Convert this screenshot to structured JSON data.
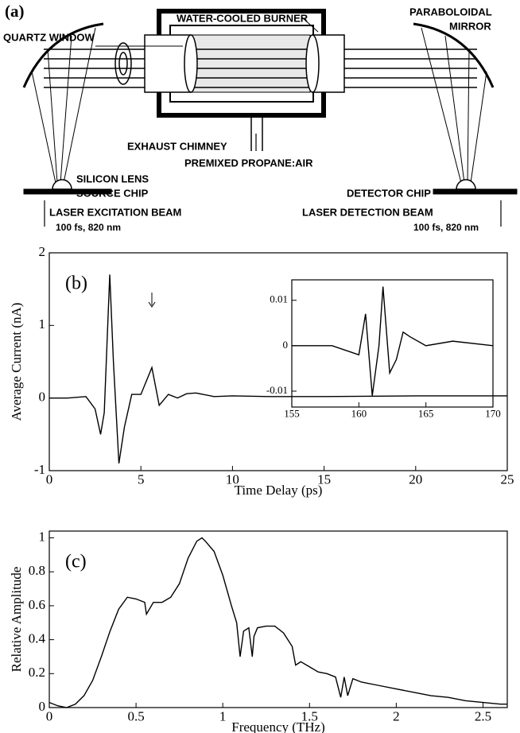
{
  "diagram": {
    "panel_label": "(a)",
    "burner": "WATER-COOLED BURNER",
    "window": "QUARTZ WINDOW",
    "mirror": [
      "PARABOLOIDAL",
      "MIRROR"
    ],
    "chimney": "EXHAUST CHIMNEY",
    "fuel": "PREMIXED PROPANE:AIR",
    "lens": "SILICON LENS",
    "source": "SOURCE CHIP",
    "detector": "DETECTOR CHIP",
    "excitation": "LASER EXCITATION BEAM",
    "excitation_spec": "100 fs, 820 nm",
    "detection": "LASER DETECTION BEAM",
    "detection_spec": "100 fs, 820 nm"
  },
  "chart_data": [
    {
      "type": "line",
      "panel_label": "(b)",
      "xlabel": "Time Delay (ps)",
      "ylabel": "Average Current (nA)",
      "color": "#000000",
      "x": [
        0,
        1,
        2,
        2.5,
        2.8,
        3.0,
        3.3,
        3.5,
        3.8,
        4.1,
        4.5,
        5.0,
        5.6,
        6.0,
        6.5,
        7.0,
        7.5,
        8,
        9,
        10,
        12,
        15,
        20,
        25
      ],
      "values": [
        0,
        0,
        0.02,
        -0.15,
        -0.5,
        -0.2,
        1.7,
        0.5,
        -0.9,
        -0.4,
        0.05,
        0.05,
        0.42,
        -0.1,
        0.05,
        0.0,
        0.06,
        0.07,
        0.02,
        0.03,
        0.02,
        0.02,
        0.03,
        0.03
      ],
      "xlim": [
        0,
        25
      ],
      "ylim": [
        -1,
        2
      ],
      "xticks": [
        0,
        5,
        10,
        15,
        20,
        25
      ],
      "yticks": [
        -1,
        0,
        1,
        2
      ]
    },
    {
      "type": "line",
      "color": "#000000",
      "x": [
        155,
        158,
        159,
        160,
        160.5,
        161,
        161.5,
        161.8,
        162.3,
        162.8,
        163.3,
        163.8,
        165,
        167,
        170
      ],
      "values": [
        0,
        0,
        -0.001,
        -0.002,
        0.007,
        -0.011,
        0,
        0.013,
        -0.006,
        -0.003,
        0.003,
        0.002,
        0,
        0.001,
        0
      ],
      "xlim": [
        155,
        170
      ],
      "ylim": [
        -0.0135,
        0.0145
      ],
      "xticks": [
        155,
        160,
        165,
        170
      ],
      "yticks": [
        -0.01,
        0,
        0.01
      ]
    },
    {
      "type": "line",
      "panel_label": "(c)",
      "xlabel": "Frequency (THz)",
      "ylabel": "Relative Amplitude",
      "color": "#000000",
      "x": [
        0,
        0.05,
        0.1,
        0.15,
        0.2,
        0.25,
        0.3,
        0.35,
        0.4,
        0.45,
        0.5,
        0.55,
        0.56,
        0.6,
        0.65,
        0.7,
        0.75,
        0.8,
        0.85,
        0.88,
        0.9,
        0.95,
        1.0,
        1.05,
        1.08,
        1.1,
        1.12,
        1.15,
        1.17,
        1.18,
        1.2,
        1.25,
        1.3,
        1.35,
        1.4,
        1.42,
        1.45,
        1.5,
        1.55,
        1.6,
        1.65,
        1.68,
        1.7,
        1.72,
        1.75,
        1.8,
        1.9,
        2.0,
        2.1,
        2.2,
        2.3,
        2.4,
        2.5,
        2.6,
        2.64
      ],
      "values": [
        0.03,
        0.01,
        0.0,
        0.02,
        0.07,
        0.16,
        0.3,
        0.45,
        0.58,
        0.65,
        0.64,
        0.62,
        0.55,
        0.62,
        0.62,
        0.65,
        0.73,
        0.88,
        0.98,
        1.0,
        0.98,
        0.92,
        0.78,
        0.6,
        0.5,
        0.3,
        0.45,
        0.47,
        0.3,
        0.42,
        0.47,
        0.48,
        0.48,
        0.44,
        0.36,
        0.25,
        0.27,
        0.24,
        0.21,
        0.2,
        0.18,
        0.06,
        0.18,
        0.07,
        0.17,
        0.15,
        0.13,
        0.11,
        0.09,
        0.07,
        0.06,
        0.04,
        0.03,
        0.02,
        0.02
      ],
      "xlim": [
        0,
        2.64
      ],
      "ylim": [
        0,
        1.04
      ],
      "xticks": [
        0,
        0.5,
        1,
        1.5,
        2,
        2.5
      ],
      "yticks": [
        0,
        0.2,
        0.4,
        0.6,
        0.8,
        1
      ]
    }
  ]
}
